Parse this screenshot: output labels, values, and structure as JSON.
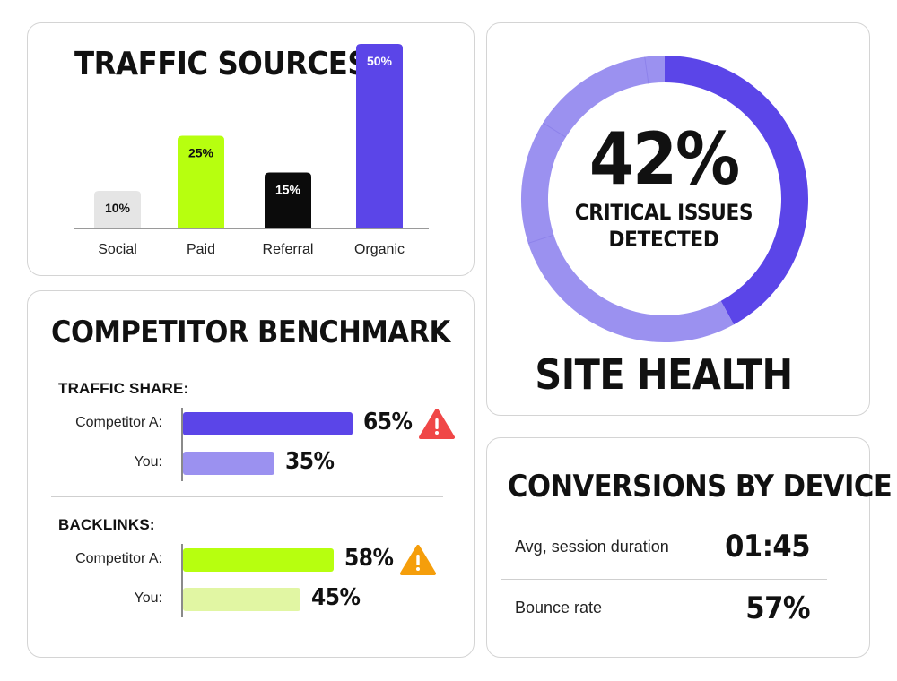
{
  "traffic_sources": {
    "title": "TRAFFIC SOURCES"
  },
  "benchmark": {
    "title": "COMPETITOR BENCHMARK",
    "traffic_share": {
      "heading": "TRAFFIC SHARE:",
      "rows": [
        {
          "label": "Competitor A:",
          "value": 65,
          "value_text": "65%",
          "color": "#5b45e8",
          "warning": "critical"
        },
        {
          "label": "You:",
          "value": 35,
          "value_text": "35%",
          "color": "#9b91f0",
          "warning": "none"
        }
      ]
    },
    "backlinks": {
      "heading": "BACKLINKS:",
      "rows": [
        {
          "label": "Competitor A:",
          "value": 58,
          "value_text": "58%",
          "color": "#b7ff0f",
          "warning": "caution"
        },
        {
          "label": "You:",
          "value": 45,
          "value_text": "45%",
          "color": "#e1f6a3",
          "warning": "none"
        }
      ]
    },
    "warning_colors": {
      "critical": "#f04747",
      "caution": "#f59e0b"
    }
  },
  "site_health": {
    "title": "SITE HEALTH",
    "percent_text": "42%",
    "line1": "CRITICAL ISSUES",
    "line2": "DETECTED",
    "colors": {
      "issues": "#5b45e8",
      "rest": "#9b91f0"
    }
  },
  "conversions": {
    "title": "CONVERSIONS BY DEVICE",
    "metrics": [
      {
        "label": "Avg, session duration",
        "value": "01:45"
      },
      {
        "label": "Bounce rate",
        "value": "57%"
      }
    ]
  },
  "chart_data": [
    {
      "type": "bar",
      "title": "TRAFFIC SOURCES",
      "categories": [
        "Social",
        "Paid",
        "Referral",
        "Organic"
      ],
      "values": [
        10,
        25,
        15,
        50
      ],
      "labels": [
        "10%",
        "25%",
        "15%",
        "50%"
      ],
      "colors": [
        "#e5e5e5",
        "#b7ff0f",
        "#0b0b0b",
        "#5b45e8"
      ],
      "label_colors": [
        "#111111",
        "#111111",
        "#ffffff",
        "#ffffff"
      ],
      "ylim": [
        0,
        50
      ],
      "grid": false,
      "legend": "none"
    },
    {
      "type": "pie",
      "title": "SITE HEALTH",
      "slices": [
        {
          "name": "Critical issues",
          "value": 42
        },
        {
          "name": "Other",
          "value": 58
        }
      ]
    }
  ]
}
